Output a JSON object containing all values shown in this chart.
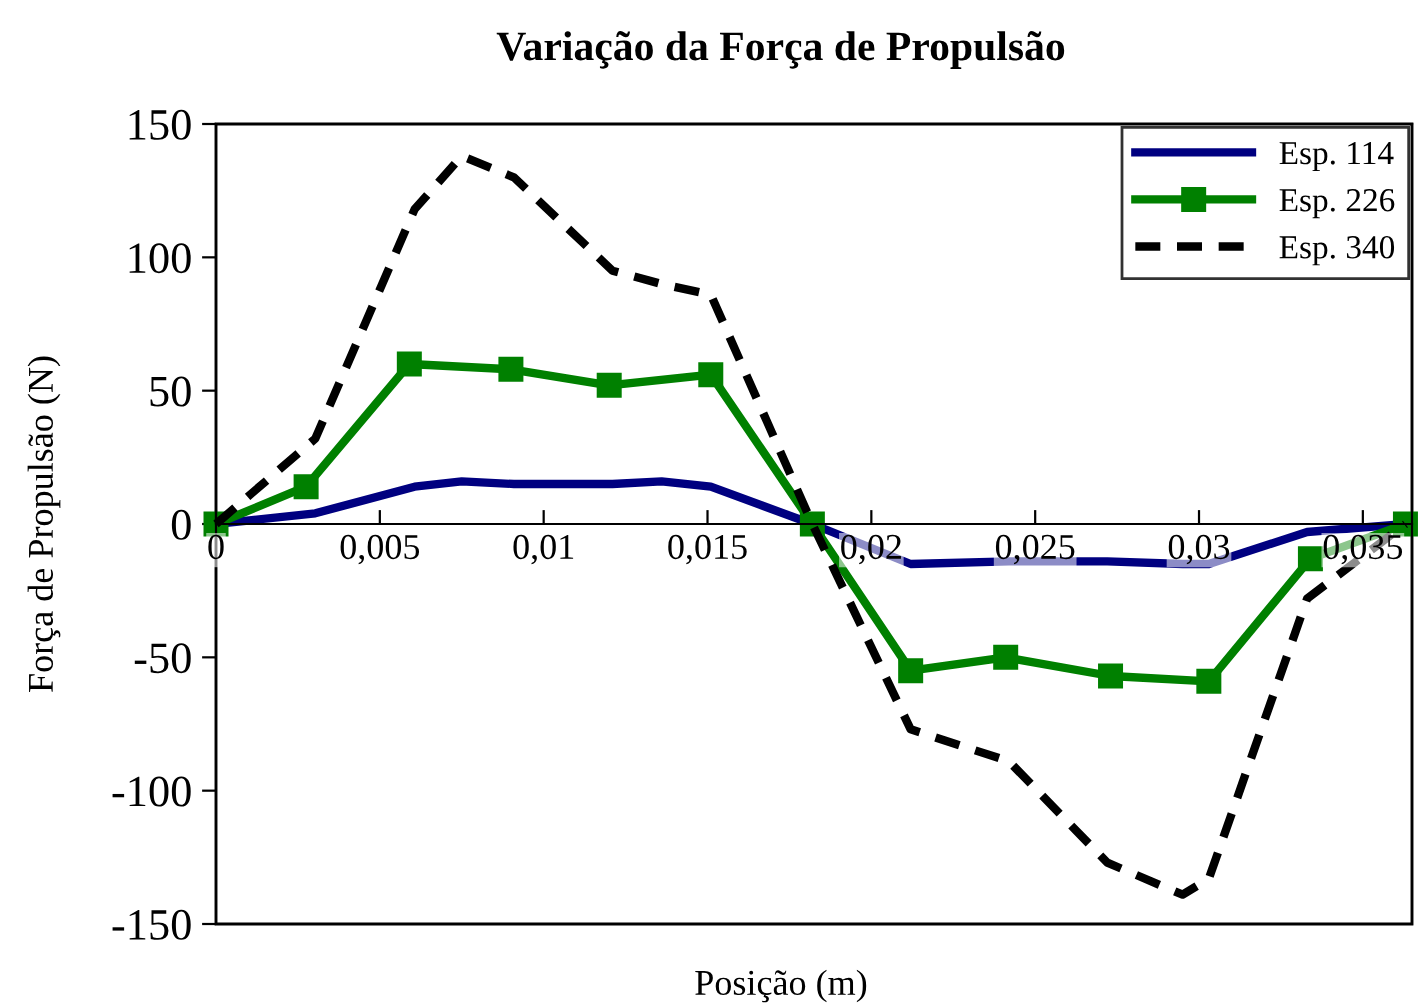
{
  "chart_data": {
    "type": "line",
    "title": "Variação da Força de Propulsão",
    "xlabel": "Posição (m)",
    "ylabel": "Força de Propulsão (N)",
    "x": [
      0,
      0.00303,
      0.00606,
      0.0075,
      0.00909,
      0.0121,
      0.0136,
      0.0151,
      0.0182,
      0.0212,
      0.0242,
      0.0272,
      0.0295,
      0.0303,
      0.0333,
      0.0363
    ],
    "series": [
      {
        "name": "Esp. 114",
        "color": "#000080",
        "marker": "none",
        "line_style": "solid",
        "values": [
          0,
          4,
          14,
          16,
          15,
          15,
          16,
          14,
          0,
          -15,
          -14,
          -14,
          -15,
          -15,
          -3,
          0
        ]
      },
      {
        "name": "Esp. 226",
        "color": "#008000",
        "marker": "square",
        "line_style": "solid",
        "x": [
          0,
          0.00275,
          0.0059,
          0.009,
          0.012,
          0.0151,
          0.0182,
          0.0212,
          0.0241,
          0.0273,
          0.0303,
          0.0334,
          0.0363
        ],
        "values": [
          0,
          14,
          60,
          58,
          52,
          56,
          0,
          -55,
          -50,
          -57,
          -59,
          -13,
          0
        ]
      },
      {
        "name": "Esp. 340",
        "color": "#000000",
        "marker": "none",
        "line_style": "dashed",
        "values": [
          0,
          32,
          118,
          138,
          130,
          95,
          90,
          86,
          0,
          -77,
          -89,
          -127,
          -139,
          -133,
          -28,
          0
        ]
      }
    ],
    "xlim": [
      0,
      0.0365
    ],
    "ylim": [
      -150,
      150
    ],
    "xticks": [
      {
        "value": 0,
        "label": "0"
      },
      {
        "value": 0.005,
        "label": "0,005"
      },
      {
        "value": 0.01,
        "label": "0,01"
      },
      {
        "value": 0.015,
        "label": "0,015"
      },
      {
        "value": 0.02,
        "label": "0,02"
      },
      {
        "value": 0.025,
        "label": "0,025"
      },
      {
        "value": 0.03,
        "label": "0,03"
      },
      {
        "value": 0.035,
        "label": "0,035"
      }
    ],
    "yticks": [
      -150,
      -100,
      -50,
      0,
      50,
      100,
      150
    ],
    "grid": false,
    "legend": "top right"
  }
}
